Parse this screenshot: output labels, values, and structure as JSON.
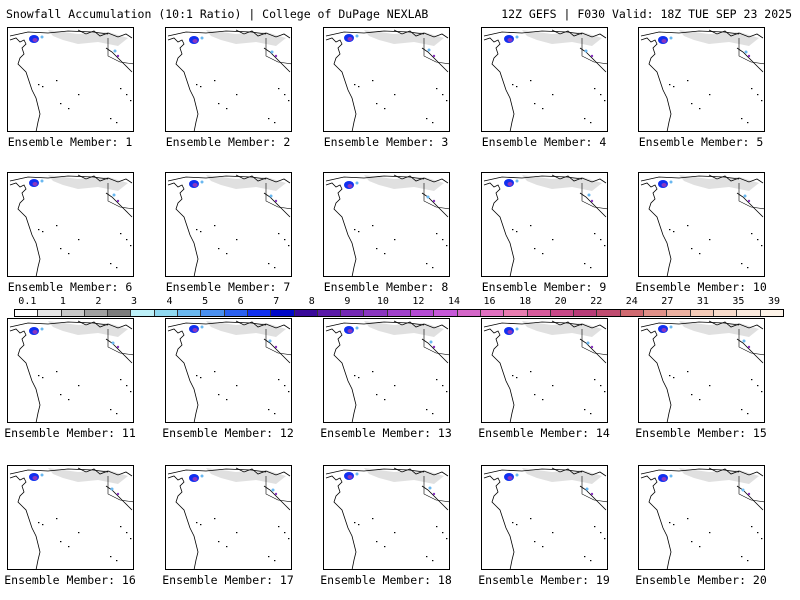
{
  "header": {
    "title_left": "Snowfall Accumulation (10:1 Ratio) | College of DuPage NEXLAB",
    "title_right": "12Z GEFS | F030 Valid: 18Z TUE SEP 23 2025"
  },
  "label_prefix": "Ensemble Member: ",
  "members": [
    "1",
    "2",
    "3",
    "4",
    "5",
    "6",
    "7",
    "8",
    "9",
    "10",
    "11",
    "12",
    "13",
    "14",
    "15",
    "16",
    "17",
    "18",
    "19",
    "20"
  ],
  "selected_member": "20",
  "colorbar": {
    "ticks": [
      "0.1",
      "1",
      "2",
      "3",
      "4",
      "5",
      "6",
      "7",
      "8",
      "9",
      "10",
      "12",
      "14",
      "16",
      "18",
      "20",
      "22",
      "24",
      "27",
      "31",
      "35",
      "39"
    ],
    "colors": [
      "#ffffff",
      "#e6e6e6",
      "#c8c8c8",
      "#a0a0a0",
      "#7b7b7b",
      "#bdf0f8",
      "#8fd8f0",
      "#6ab8f0",
      "#4a90f0",
      "#2a60f0",
      "#1030f0",
      "#0008c8",
      "#3a0a9a",
      "#5a1aa8",
      "#7428b4",
      "#8a36c0",
      "#a040cc",
      "#b44ad4",
      "#c658d8",
      "#d466c8",
      "#e070c0",
      "#e87cb0",
      "#d85a9c",
      "#c84888",
      "#b83c78",
      "#c04c70",
      "#d06a70",
      "#e09088",
      "#ecb0a0",
      "#f4cbb8",
      "#f8dccc",
      "#fbeade",
      "#fdf3e8"
    ]
  },
  "colors": {
    "ocean": "#ffffff",
    "snow_shade": "#c8c8c8",
    "coast": "#000000"
  }
}
